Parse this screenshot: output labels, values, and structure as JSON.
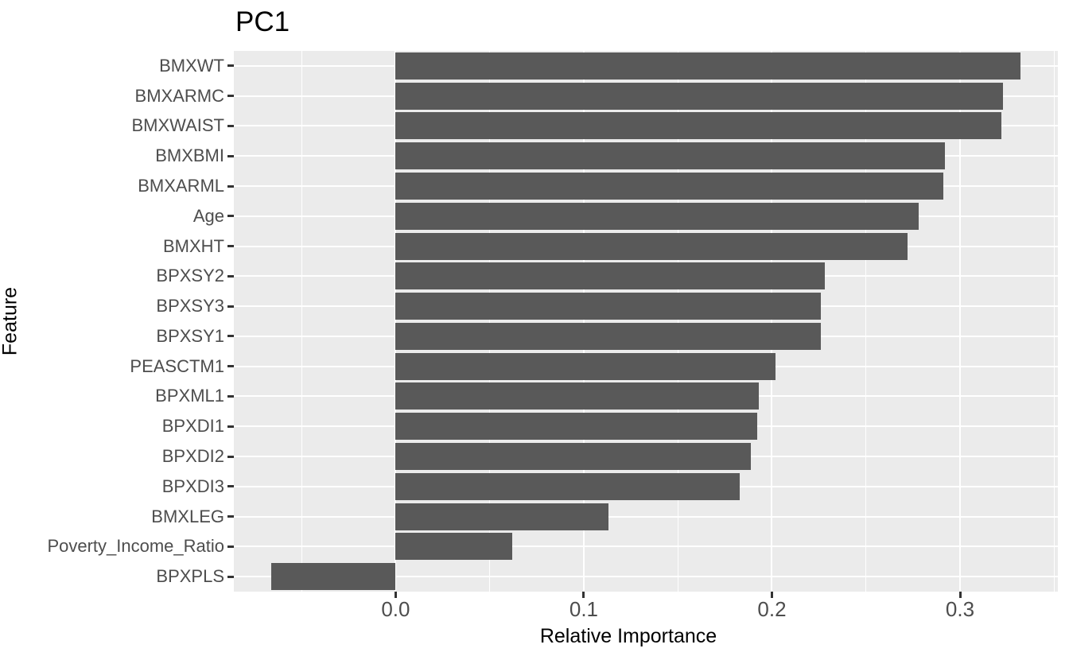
{
  "chart_data": {
    "type": "bar",
    "orientation": "horizontal",
    "title": "PC1",
    "xlabel": "Relative Importance",
    "ylabel": "Feature",
    "categories": [
      "BMXWT",
      "BMXARMC",
      "BMXWAIST",
      "BMXBMI",
      "BMXARML",
      "Age",
      "BMXHT",
      "BPXSY2",
      "BPXSY3",
      "BPXSY1",
      "PEASCTM1",
      "BPXML1",
      "BPXDI1",
      "BPXDI2",
      "BPXDI3",
      "BMXLEG",
      "Poverty_Income_Ratio",
      "BPXPLS"
    ],
    "values": [
      0.332,
      0.323,
      0.322,
      0.292,
      0.291,
      0.278,
      0.272,
      0.228,
      0.226,
      0.226,
      0.202,
      0.193,
      0.192,
      0.189,
      0.183,
      0.113,
      0.062,
      -0.066
    ],
    "xlim": [
      -0.086,
      0.352
    ],
    "x_ticks": {
      "major": [
        0.0,
        0.1,
        0.2,
        0.3
      ],
      "major_labels": [
        "0.0",
        "0.1",
        "0.2",
        "0.3"
      ],
      "minor": [
        -0.05,
        0.05,
        0.15,
        0.25,
        0.35
      ]
    },
    "legend": "none",
    "grid": {
      "vertical": "major+minor",
      "horizontal": "major at category centers",
      "color": "#FFFFFF"
    },
    "colors": {
      "bar": "#595959",
      "panel_background": "#EBEBEB",
      "grid": "#FFFFFF",
      "tick_text": "#4D4D4D",
      "title_text": "#000000",
      "tick_mark": "#333333"
    }
  }
}
